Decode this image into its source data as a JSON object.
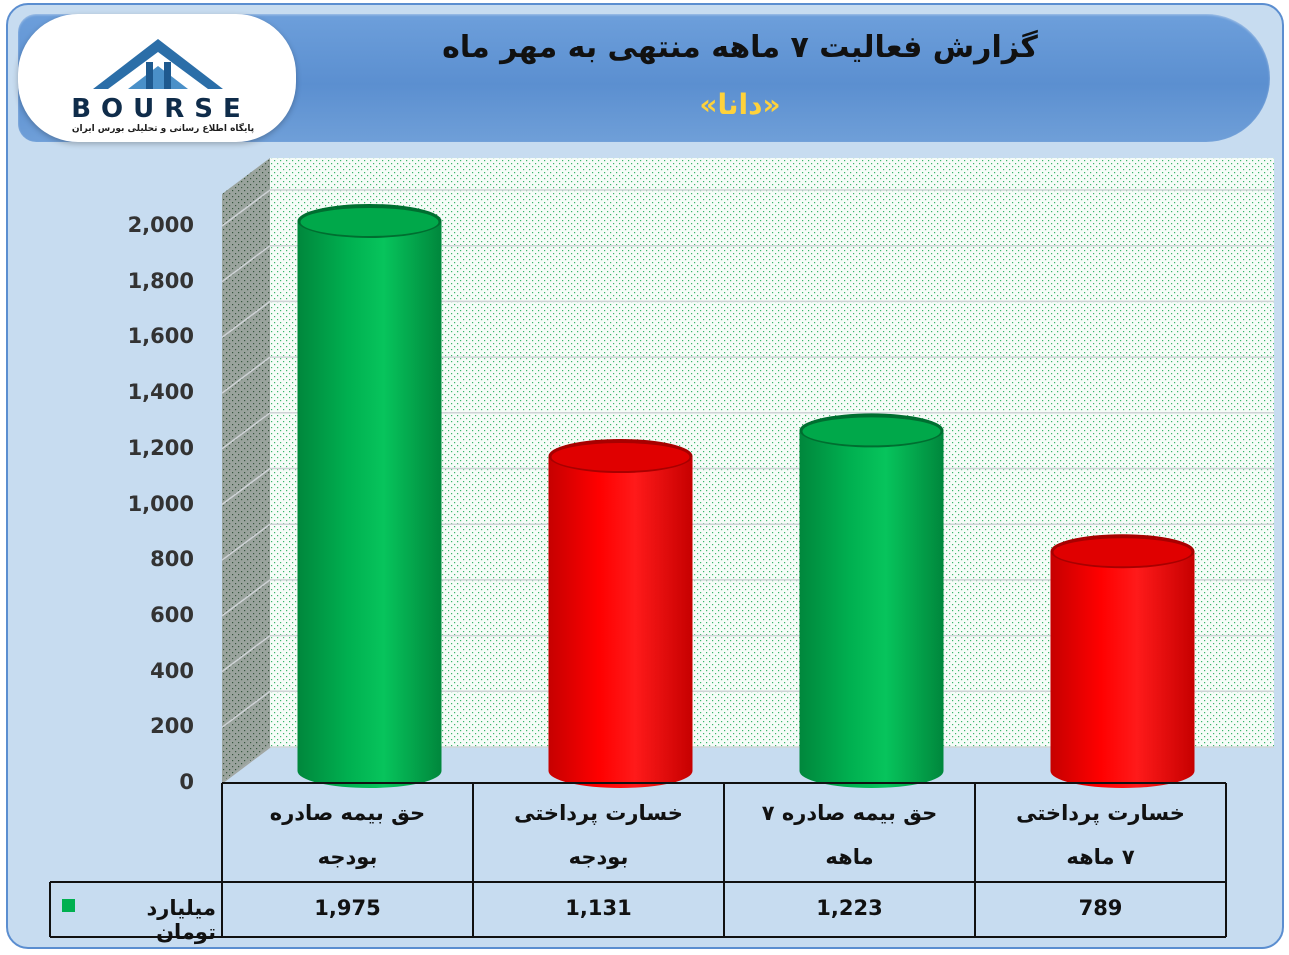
{
  "header": {
    "title": "گزارش فعالیت ۷ ماهه منتهی به مهر ماه",
    "subtitle": "«دانا»"
  },
  "logo": {
    "name": "BOURSE",
    "tagline": "پایگاه اطلاع رسانی و تحلیلی بورس ایران"
  },
  "colors": {
    "green": "#00b050",
    "red": "#ff0000",
    "grid": "#cfd3d6",
    "plot_bg": "#f4fbf6"
  },
  "chart_data": {
    "type": "bar",
    "style": "3d-cylinder",
    "categories": [
      [
        "حق بیمه صادره",
        "بودجه"
      ],
      [
        "خسارت پرداختی",
        "بودجه"
      ],
      [
        "حق بیمه صادره ۷",
        "ماهه"
      ],
      [
        "خسارت پرداختی",
        "۷ ماهه"
      ]
    ],
    "series": [
      {
        "name": "میلیارد تومان",
        "values": [
          1975,
          1131,
          1223,
          789
        ],
        "value_labels": [
          "1,975",
          "1,131",
          "1,223",
          "789"
        ],
        "bar_colors": [
          "#00b050",
          "#ff0000",
          "#00b050",
          "#ff0000"
        ]
      }
    ],
    "ylim": [
      0,
      2000
    ],
    "yticks": [
      "0",
      "200",
      "400",
      "600",
      "800",
      "1,000",
      "1,200",
      "1,400",
      "1,600",
      "1,800",
      "2,000"
    ],
    "grid": true,
    "legend": "data-table-left",
    "legend_color": "#00b050"
  }
}
